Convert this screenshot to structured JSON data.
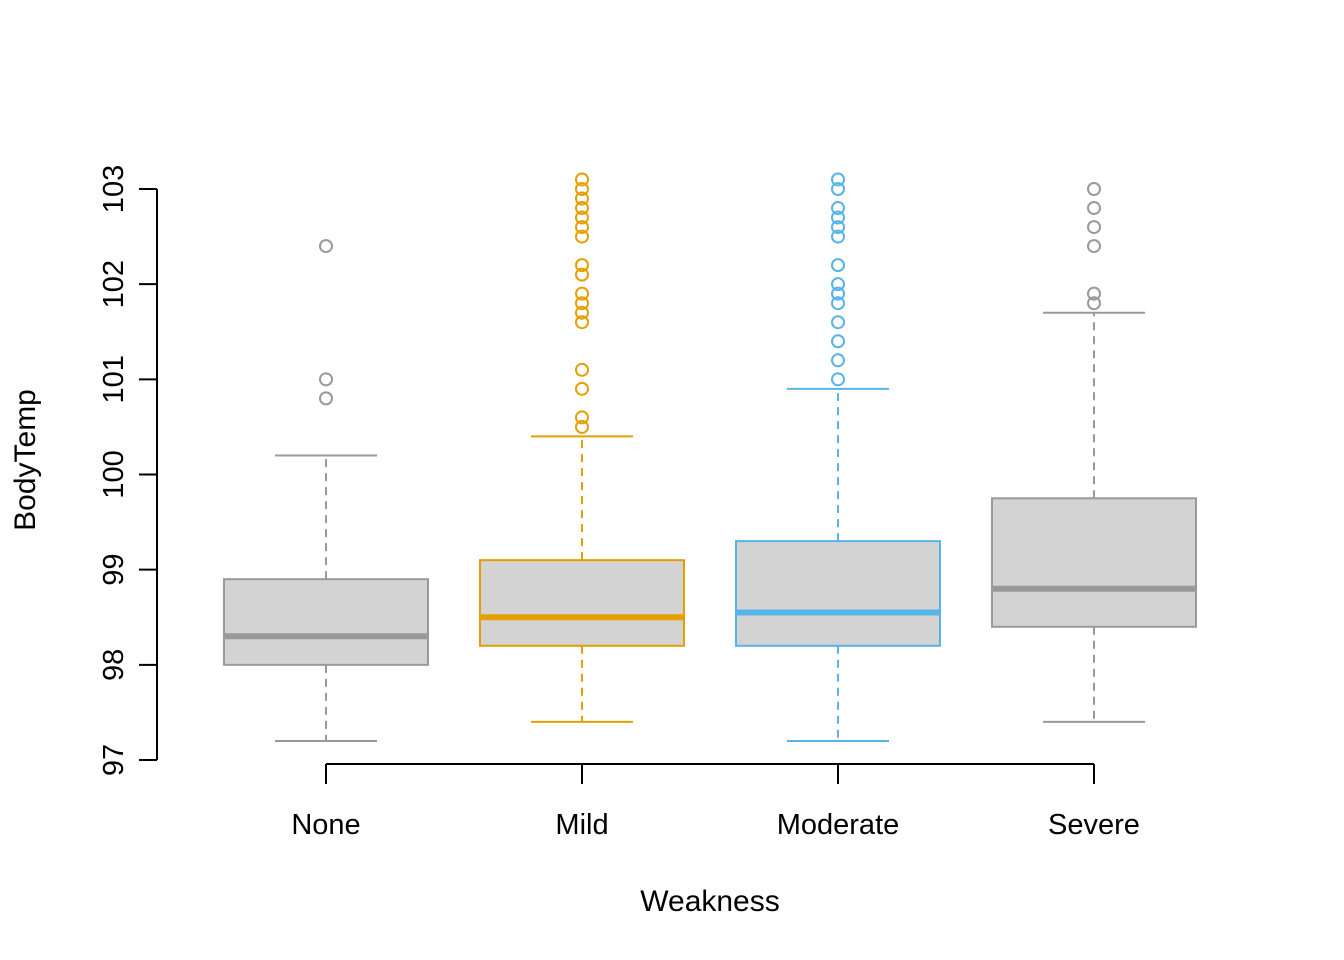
{
  "chart_data": {
    "type": "boxplot",
    "title": "",
    "xlabel": "Weakness",
    "ylabel": "BodyTemp",
    "ylim": [
      97,
      103
    ],
    "y_ticks": [
      "97",
      "98",
      "99",
      "100",
      "101",
      "102",
      "103"
    ],
    "grid": false,
    "legend": "none",
    "categories": [
      "None",
      "Mild",
      "Moderate",
      "Severe"
    ],
    "boxes": [
      {
        "category": "None",
        "whisker_low": 97.2,
        "q1": 98.0,
        "median": 98.3,
        "q3": 98.9,
        "whisker_high": 100.2,
        "outliers": [
          100.8,
          101.0,
          102.4
        ],
        "color": "#999999",
        "fill": "#d3d3d3"
      },
      {
        "category": "Mild",
        "whisker_low": 97.4,
        "q1": 98.2,
        "median": 98.5,
        "q3": 99.1,
        "whisker_high": 100.4,
        "outliers": [
          100.5,
          100.6,
          100.9,
          101.1,
          101.6,
          101.7,
          101.8,
          101.9,
          102.1,
          102.2,
          102.5,
          102.6,
          102.7,
          102.8,
          102.9,
          103.0,
          103.1
        ],
        "color": "#e69f00",
        "fill": "#d3d3d3"
      },
      {
        "category": "Moderate",
        "whisker_low": 97.2,
        "q1": 98.2,
        "median": 98.55,
        "q3": 99.3,
        "whisker_high": 100.9,
        "outliers": [
          101.0,
          101.2,
          101.4,
          101.6,
          101.8,
          101.9,
          102.0,
          102.2,
          102.5,
          102.6,
          102.7,
          102.8,
          103.0,
          103.1
        ],
        "color": "#56b4e9",
        "fill": "#d3d3d3"
      },
      {
        "category": "Severe",
        "whisker_low": 97.4,
        "q1": 98.4,
        "median": 98.8,
        "q3": 99.75,
        "whisker_high": 101.7,
        "outliers": [
          101.8,
          101.9,
          102.4,
          102.6,
          102.8,
          103.0
        ],
        "color": "#999999",
        "fill": "#d3d3d3"
      }
    ]
  }
}
